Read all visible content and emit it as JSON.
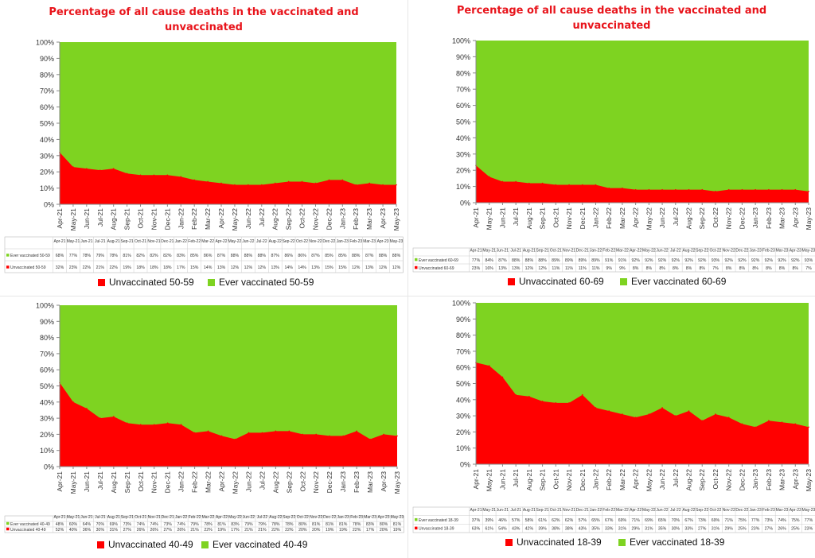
{
  "colors": {
    "unvaccinated": "#ff0000",
    "vaccinated": "#7ed321",
    "title": "#e8141b",
    "grid": "#c8c8c8"
  },
  "panels": [
    {
      "title_line1": "Percentage of all cause deaths in the vaccinated and",
      "title_line2": "unvaccinated"
    },
    {
      "title_line1": "Percentage of all cause deaths in the vaccinated and",
      "title_line2": "unvaccinated"
    },
    {
      "title_line1": "",
      "title_line2": ""
    },
    {
      "title_line1": "",
      "title_line2": ""
    }
  ],
  "chart_data": [
    {
      "type": "area",
      "stacked": true,
      "title": "Percentage of all cause deaths in the vaccinated and unvaccinated",
      "y_ticks": [
        "0%",
        "10%",
        "20%",
        "30%",
        "40%",
        "50%",
        "60%",
        "70%",
        "80%",
        "90%",
        "100%"
      ],
      "ylim": [
        0,
        100
      ],
      "x": [
        "Apr-21",
        "May-21",
        "Jun-21",
        "Jul-21",
        "Aug-21",
        "Sep-21",
        "Oct-21",
        "Nov-21",
        "Dec-21",
        "Jan-22",
        "Feb-22",
        "Mar-22",
        "Apr-22",
        "May-22",
        "Jun-22",
        "Jul-22",
        "Aug-22",
        "Sep-22",
        "Oct-22",
        "Nov-22",
        "Dec-22",
        "Jan-23",
        "Feb-23",
        "Mar-23",
        "Apr-23",
        "May-23"
      ],
      "series": [
        {
          "name": "Unvaccinated 50-59",
          "values": [
            32,
            23,
            22,
            21,
            22,
            19,
            18,
            18,
            18,
            17,
            15,
            14,
            13,
            12,
            12,
            12,
            13,
            14,
            14,
            13,
            15,
            15,
            12,
            13,
            12,
            12
          ],
          "display": [
            "32%",
            "23%",
            "22%",
            "21%",
            "22%",
            "19%",
            "18%",
            "18%",
            "18%",
            "17%",
            "15%",
            "14%",
            "13%",
            "12%",
            "12%",
            "12%",
            "13%",
            "14%",
            "14%",
            "13%",
            "15%",
            "15%",
            "12%",
            "13%",
            "12%",
            "12%"
          ]
        },
        {
          "name": "Ever vaccinated 50-59",
          "values": [
            68,
            77,
            78,
            79,
            78,
            81,
            82,
            82,
            82,
            83,
            85,
            86,
            87,
            88,
            88,
            88,
            87,
            86,
            86,
            87,
            85,
            85,
            88,
            87,
            88,
            88
          ],
          "display": [
            "68%",
            "77%",
            "78%",
            "79%",
            "78%",
            "81%",
            "82%",
            "82%",
            "82%",
            "83%",
            "85%",
            "86%",
            "87%",
            "88%",
            "88%",
            "88%",
            "87%",
            "86%",
            "86%",
            "87%",
            "85%",
            "85%",
            "88%",
            "87%",
            "88%",
            "88%"
          ]
        }
      ]
    },
    {
      "type": "area",
      "stacked": true,
      "title": "Percentage of all cause deaths in the vaccinated and unvaccinated",
      "y_ticks": [
        "0%",
        "10%",
        "20%",
        "30%",
        "40%",
        "50%",
        "60%",
        "70%",
        "80%",
        "90%",
        "100%"
      ],
      "ylim": [
        0,
        100
      ],
      "x": [
        "Apr-21",
        "May-21",
        "Jun-21",
        "Jul-21",
        "Aug-21",
        "Sep-21",
        "Oct-21",
        "Nov-21",
        "Dec-21",
        "Jan-22",
        "Feb-22",
        "Mar-22",
        "Apr-22",
        "May-22",
        "Jun-22",
        "Jul-22",
        "Aug-22",
        "Sep-22",
        "Oct-22",
        "Nov-22",
        "Dec-22",
        "Jan-23",
        "Feb-23",
        "Mar-23",
        "Apr-23",
        "May-23"
      ],
      "series": [
        {
          "name": "Unvaccinated 60-69",
          "values": [
            23,
            16,
            13,
            13,
            12,
            12,
            11,
            11,
            11,
            11,
            9,
            9,
            8,
            8,
            8,
            8,
            8,
            8,
            7,
            8,
            8,
            8,
            8,
            8,
            8,
            7
          ],
          "display": [
            "23%",
            "16%",
            "13%",
            "13%",
            "12%",
            "12%",
            "11%",
            "11%",
            "11%",
            "11%",
            "9%",
            "9%",
            "8%",
            "8%",
            "8%",
            "8%",
            "8%",
            "8%",
            "7%",
            "8%",
            "8%",
            "8%",
            "8%",
            "8%",
            "8%",
            "7%"
          ]
        },
        {
          "name": "Ever vaccinated 60-69",
          "values": [
            77,
            84,
            87,
            88,
            88,
            88,
            89,
            89,
            89,
            89,
            91,
            91,
            92,
            92,
            92,
            92,
            92,
            92,
            93,
            92,
            92,
            92,
            92,
            92,
            92,
            93
          ],
          "display": [
            "77%",
            "84%",
            "87%",
            "88%",
            "88%",
            "88%",
            "89%",
            "89%",
            "89%",
            "89%",
            "91%",
            "91%",
            "92%",
            "92%",
            "92%",
            "92%",
            "92%",
            "92%",
            "93%",
            "92%",
            "92%",
            "92%",
            "92%",
            "92%",
            "92%",
            "93%"
          ]
        }
      ]
    },
    {
      "type": "area",
      "stacked": true,
      "title": "",
      "y_ticks": [
        "0%",
        "10%",
        "20%",
        "30%",
        "40%",
        "50%",
        "60%",
        "70%",
        "80%",
        "90%",
        "100%"
      ],
      "ylim": [
        0,
        100
      ],
      "x": [
        "Apr-21",
        "May-21",
        "Jun-21",
        "Jul-21",
        "Aug-21",
        "Sep-21",
        "Oct-21",
        "Nov-21",
        "Dec-21",
        "Jan-22",
        "Feb-22",
        "Mar-22",
        "Apr-22",
        "May-22",
        "Jun-22",
        "Jul-22",
        "Aug-22",
        "Sep-22",
        "Oct-22",
        "Nov-22",
        "Dec-22",
        "Jan-23",
        "Feb-23",
        "Mar-23",
        "Apr-23",
        "May-23"
      ],
      "series": [
        {
          "name": "Unvaccinated 40-49",
          "values": [
            52,
            40,
            36,
            30,
            31,
            27,
            26,
            26,
            27,
            26,
            21,
            22,
            19,
            17,
            21,
            21,
            22,
            22,
            20,
            20,
            19,
            19,
            22,
            17,
            20,
            19
          ],
          "display": [
            "52%",
            "40%",
            "36%",
            "30%",
            "31%",
            "27%",
            "26%",
            "26%",
            "27%",
            "26%",
            "21%",
            "22%",
            "19%",
            "17%",
            "21%",
            "21%",
            "22%",
            "22%",
            "20%",
            "20%",
            "19%",
            "19%",
            "22%",
            "17%",
            "20%",
            "19%"
          ]
        },
        {
          "name": "Ever vaccinated 40-49",
          "values": [
            48,
            60,
            64,
            70,
            69,
            73,
            74,
            74,
            73,
            74,
            79,
            78,
            81,
            83,
            79,
            79,
            78,
            78,
            80,
            81,
            81,
            81,
            78,
            83,
            80,
            81
          ],
          "display": [
            "48%",
            "60%",
            "64%",
            "70%",
            "69%",
            "73%",
            "74%",
            "74%",
            "73%",
            "74%",
            "79%",
            "78%",
            "81%",
            "83%",
            "79%",
            "79%",
            "78%",
            "78%",
            "80%",
            "81%",
            "81%",
            "81%",
            "78%",
            "83%",
            "80%",
            "81%"
          ]
        }
      ]
    },
    {
      "type": "area",
      "stacked": true,
      "title": "",
      "y_ticks": [
        "0%",
        "10%",
        "20%",
        "30%",
        "40%",
        "50%",
        "60%",
        "70%",
        "80%",
        "90%",
        "100%"
      ],
      "ylim": [
        0,
        100
      ],
      "x": [
        "Apr-21",
        "May-21",
        "Jun-21",
        "Jul-21",
        "Aug-21",
        "Sep-21",
        "Oct-21",
        "Nov-21",
        "Dec-21",
        "Jan-22",
        "Feb-22",
        "Mar-22",
        "Apr-22",
        "May-22",
        "Jun-22",
        "Jul-22",
        "Aug-22",
        "Sep-22",
        "Oct-22",
        "Nov-22",
        "Dec-22",
        "Jan-23",
        "Feb-23",
        "Mar-23",
        "Apr-23",
        "May-23"
      ],
      "series": [
        {
          "name": "Unvaccinated 18-39",
          "values": [
            63,
            61,
            54,
            43,
            42,
            39,
            38,
            38,
            43,
            35,
            33,
            31,
            29,
            31,
            35,
            30,
            33,
            27,
            31,
            29,
            25,
            23,
            27,
            26,
            25,
            23
          ],
          "display": [
            "63%",
            "61%",
            "54%",
            "43%",
            "42%",
            "39%",
            "38%",
            "38%",
            "43%",
            "35%",
            "33%",
            "31%",
            "29%",
            "31%",
            "35%",
            "30%",
            "33%",
            "27%",
            "31%",
            "29%",
            "25%",
            "23%",
            "27%",
            "26%",
            "25%",
            "23%"
          ]
        },
        {
          "name": "Ever vaccinated 18-39",
          "values": [
            37,
            39,
            46,
            57,
            58,
            61,
            62,
            62,
            57,
            65,
            67,
            69,
            71,
            69,
            65,
            70,
            67,
            73,
            69,
            71,
            75,
            77,
            73,
            74,
            75,
            77
          ],
          "display": [
            "37%",
            "39%",
            "46%",
            "57%",
            "58%",
            "61%",
            "62%",
            "62%",
            "57%",
            "65%",
            "67%",
            "69%",
            "71%",
            "69%",
            "65%",
            "70%",
            "67%",
            "73%",
            "69%",
            "71%",
            "75%",
            "77%",
            "73%",
            "74%",
            "75%",
            "77%"
          ]
        }
      ]
    }
  ]
}
